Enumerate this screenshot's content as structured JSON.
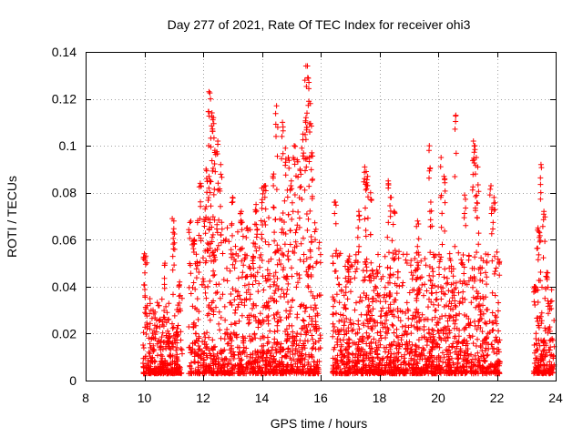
{
  "chart_data": {
    "type": "scatter",
    "title": "Day 277 of 2021, Rate Of TEC Index for receiver ohi3",
    "xlabel": "GPS time / hours",
    "ylabel": "ROTI / TECUs",
    "xlim": [
      8,
      24
    ],
    "ylim": [
      0,
      0.14
    ],
    "xticks": [
      8,
      10,
      12,
      14,
      16,
      18,
      20,
      22,
      24
    ],
    "xtick_labels": [
      "8",
      "10",
      "12",
      "14",
      "16",
      "18",
      "20",
      "22",
      "24"
    ],
    "yticks": [
      0,
      0.02,
      0.04,
      0.06,
      0.08,
      0.1,
      0.12,
      0.14
    ],
    "ytick_labels": [
      "0",
      "0.02",
      "0.04",
      "0.06",
      "0.08",
      "0.1",
      "0.12",
      "0.14"
    ],
    "grid": true,
    "marker": "plus",
    "color": "#ff0000",
    "series": [
      {
        "name": "ROTI",
        "segments": [
          {
            "x": [
              9.95,
              11.3
            ],
            "base": [
              0.003,
              0.035
            ],
            "spikes": [
              [
                10.0,
                0.054
              ],
              [
                10.05,
                0.053
              ],
              [
                10.95,
                0.069
              ],
              [
                11.0,
                0.068
              ],
              [
                10.7,
                0.05
              ],
              [
                11.2,
                0.042
              ]
            ]
          },
          {
            "x": [
              11.5,
              16.0
            ],
            "base": [
              0.003,
              0.07
            ],
            "spikes": [
              [
                12.2,
                0.123
              ],
              [
                12.25,
                0.12
              ],
              [
                12.3,
                0.114
              ],
              [
                12.35,
                0.112
              ],
              [
                12.5,
                0.102
              ],
              [
                12.4,
                0.098
              ],
              [
                12.1,
                0.09
              ],
              [
                12.2,
                0.087
              ],
              [
                12.6,
                0.092
              ],
              [
                14.5,
                0.117
              ],
              [
                14.7,
                0.11
              ],
              [
                14.8,
                0.099
              ],
              [
                14.9,
                0.095
              ],
              [
                15.1,
                0.1
              ],
              [
                15.2,
                0.094
              ],
              [
                15.5,
                0.134
              ],
              [
                15.55,
                0.134
              ],
              [
                15.6,
                0.127
              ],
              [
                15.65,
                0.118
              ],
              [
                15.5,
                0.112
              ],
              [
                15.4,
                0.105
              ],
              [
                15.7,
                0.097
              ],
              [
                14.1,
                0.083
              ],
              [
                14.0,
                0.082
              ],
              [
                13.8,
                0.075
              ],
              [
                14.4,
                0.088
              ],
              [
                15.0,
                0.085
              ],
              [
                15.3,
                0.09
              ],
              [
                11.9,
                0.084
              ],
              [
                11.7,
                0.06
              ],
              [
                13.0,
                0.078
              ],
              [
                13.3,
                0.072
              ]
            ]
          },
          {
            "x": [
              16.4,
              22.1
            ],
            "base": [
              0.003,
              0.055
            ],
            "spikes": [
              [
                17.5,
                0.091
              ],
              [
                17.55,
                0.089
              ],
              [
                17.6,
                0.087
              ],
              [
                17.7,
                0.08
              ],
              [
                18.3,
                0.085
              ],
              [
                18.4,
                0.078
              ],
              [
                18.5,
                0.072
              ],
              [
                19.7,
                0.1
              ],
              [
                19.75,
                0.076
              ],
              [
                20.1,
                0.095
              ],
              [
                20.2,
                0.087
              ],
              [
                20.6,
                0.113
              ],
              [
                21.2,
                0.102
              ],
              [
                21.25,
                0.1
              ],
              [
                21.3,
                0.095
              ],
              [
                21.35,
                0.091
              ],
              [
                21.8,
                0.083
              ],
              [
                21.9,
                0.078
              ],
              [
                16.5,
                0.076
              ],
              [
                17.3,
                0.072
              ],
              [
                20.9,
                0.079
              ],
              [
                19.3,
                0.068
              ]
            ]
          },
          {
            "x": [
              23.25,
              23.95
            ],
            "base": [
              0.003,
              0.04
            ],
            "spikes": [
              [
                23.5,
                0.092
              ],
              [
                23.6,
                0.072
              ],
              [
                23.4,
                0.065
              ],
              [
                23.45,
                0.063
              ],
              [
                23.7,
                0.046
              ],
              [
                23.3,
                0.04
              ]
            ]
          }
        ]
      }
    ]
  }
}
